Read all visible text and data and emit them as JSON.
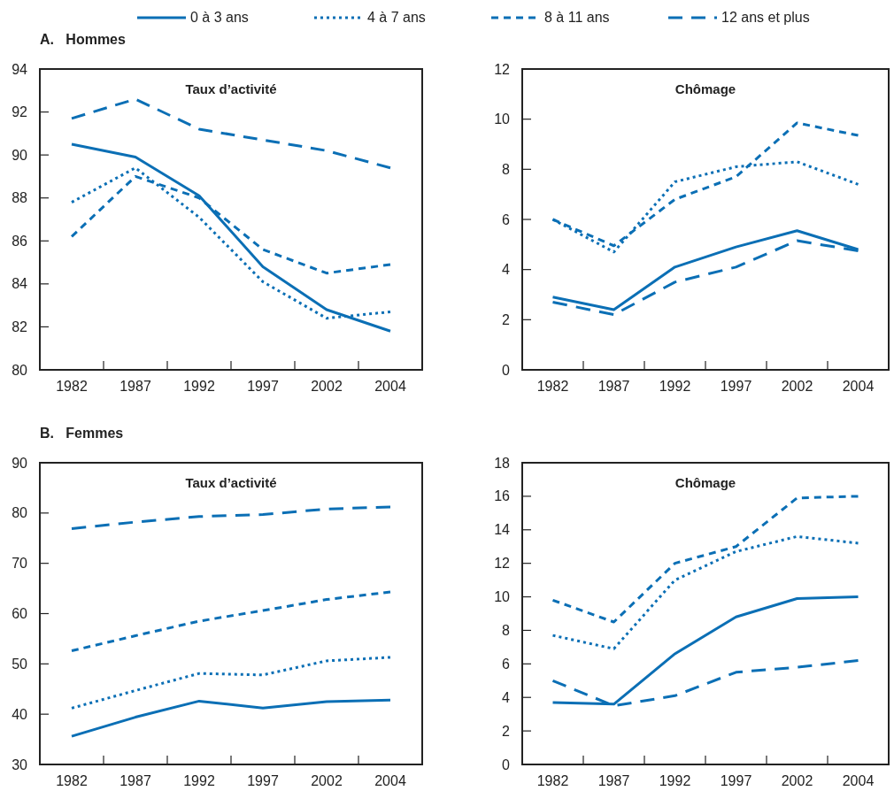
{
  "chart_data": [
    {
      "type": "line",
      "title": "A.   Hommes",
      "subtitle": "Taux d’activité",
      "categories": [
        "1982",
        "1987",
        "1992",
        "1997",
        "2002",
        "2004"
      ],
      "ylim": [
        80,
        94
      ],
      "yticks": [
        80,
        82,
        84,
        86,
        88,
        90,
        92,
        94
      ],
      "grid": false,
      "legend": "top",
      "marker": "none",
      "series": [
        {
          "name": "0 à 3 ans",
          "color": "#0b6fb5",
          "line_style": "solid",
          "values": [
            90.5,
            89.9,
            88.1,
            84.8,
            82.8,
            81.8
          ]
        },
        {
          "name": "4 à 7 ans",
          "color": "#0b6fb5",
          "line_style": "dotted",
          "values": [
            87.8,
            89.4,
            87.1,
            84.1,
            82.4,
            82.7
          ]
        },
        {
          "name": "8 à 11 ans",
          "color": "#0b6fb5",
          "line_style": "dashed",
          "values": [
            86.2,
            89.0,
            88.0,
            85.6,
            84.5,
            84.9
          ]
        },
        {
          "name": "12 ans et plus",
          "color": "#0b6fb5",
          "line_style": "dashed",
          "values": [
            91.7,
            92.6,
            91.2,
            90.7,
            90.2,
            89.4
          ]
        }
      ]
    },
    {
      "type": "line",
      "subtitle": "Chômage",
      "categories": [
        "1982",
        "1987",
        "1992",
        "1997",
        "2002",
        "2004"
      ],
      "ylim": [
        0,
        12
      ],
      "yticks": [
        0,
        2,
        4,
        6,
        8,
        10,
        12
      ],
      "grid": false,
      "marker": "none",
      "series": [
        {
          "color": "#0b6fb5",
          "line_style": "solid",
          "values": [
            2.9,
            2.4,
            4.1,
            4.9,
            5.55,
            4.8
          ]
        },
        {
          "color": "#0b6fb5",
          "line_style": "dotted",
          "values": [
            6.0,
            4.7,
            7.5,
            8.1,
            8.3,
            7.4
          ]
        },
        {
          "color": "#0b6fb5",
          "line_style": "dashed",
          "values": [
            6.0,
            4.95,
            6.8,
            7.7,
            9.85,
            9.35
          ]
        },
        {
          "color": "#0b6fb5",
          "line_style": "dashed",
          "values": [
            2.7,
            2.2,
            3.5,
            4.1,
            5.15,
            4.75
          ]
        }
      ]
    },
    {
      "type": "line",
      "title": "B.   Femmes",
      "subtitle": "Taux d’activité",
      "categories": [
        "1982",
        "1987",
        "1992",
        "1997",
        "2002",
        "2004"
      ],
      "ylim": [
        30,
        90
      ],
      "yticks": [
        30,
        40,
        50,
        60,
        70,
        80,
        90
      ],
      "grid": false,
      "marker": "none",
      "series": [
        {
          "color": "#0b6fb5",
          "line_style": "solid",
          "values": [
            35.6,
            39.4,
            42.6,
            41.2,
            42.5,
            42.8
          ]
        },
        {
          "color": "#0b6fb5",
          "line_style": "dotted",
          "values": [
            41.2,
            44.7,
            48.1,
            47.8,
            50.6,
            51.3
          ]
        },
        {
          "color": "#0b6fb5",
          "line_style": "dashed",
          "values": [
            52.6,
            55.6,
            58.5,
            60.6,
            62.8,
            64.3
          ]
        },
        {
          "color": "#0b6fb5",
          "line_style": "dashed",
          "values": [
            76.9,
            78.2,
            79.3,
            79.7,
            80.8,
            81.2
          ]
        }
      ]
    },
    {
      "type": "line",
      "subtitle": "Chômage",
      "categories": [
        "1982",
        "1987",
        "1992",
        "1997",
        "2002",
        "2004"
      ],
      "ylim": [
        0,
        18
      ],
      "yticks": [
        0,
        2,
        4,
        6,
        8,
        10,
        12,
        14,
        16,
        18
      ],
      "grid": false,
      "marker": "none",
      "series": [
        {
          "color": "#0b6fb5",
          "line_style": "solid",
          "values": [
            3.7,
            3.6,
            6.6,
            8.8,
            9.9,
            10.0
          ]
        },
        {
          "color": "#0b6fb5",
          "line_style": "dotted",
          "values": [
            7.7,
            6.9,
            11.0,
            12.7,
            13.6,
            13.2
          ]
        },
        {
          "color": "#0b6fb5",
          "line_style": "dashed",
          "values": [
            9.8,
            8.5,
            12.0,
            13.0,
            15.9,
            16.0
          ]
        },
        {
          "color": "#0b6fb5",
          "line_style": "dashed",
          "values": [
            5.0,
            3.5,
            4.1,
            5.5,
            5.8,
            6.2
          ]
        }
      ]
    }
  ]
}
